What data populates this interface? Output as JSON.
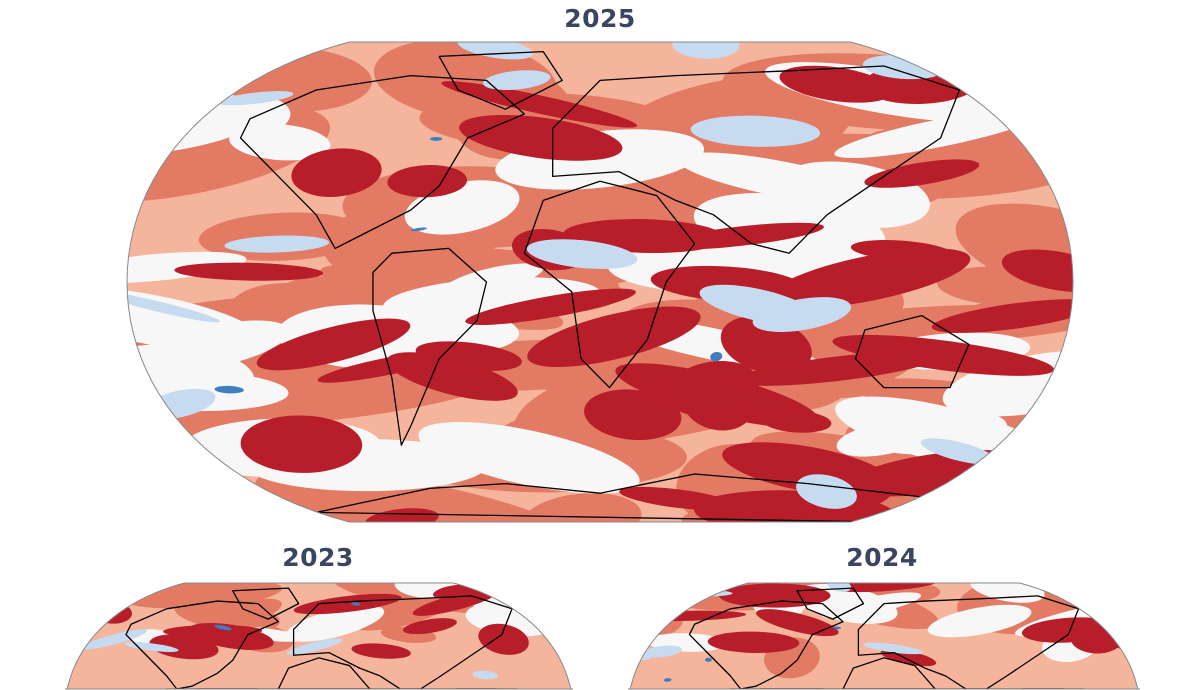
{
  "maps": [
    {
      "title": "2025"
    },
    {
      "title": "2023"
    },
    {
      "title": "2024"
    }
  ],
  "colors": {
    "title": "#3a4660",
    "background_anomaly_mild": "#f5b59c",
    "anomaly_moderate": "#e27a64",
    "anomaly_strong": "#b81d2a",
    "near_zero": "#f7f7f7",
    "cool": "#c6dbef",
    "cool_strong": "#3f7fbf",
    "coastline": "#000000"
  }
}
